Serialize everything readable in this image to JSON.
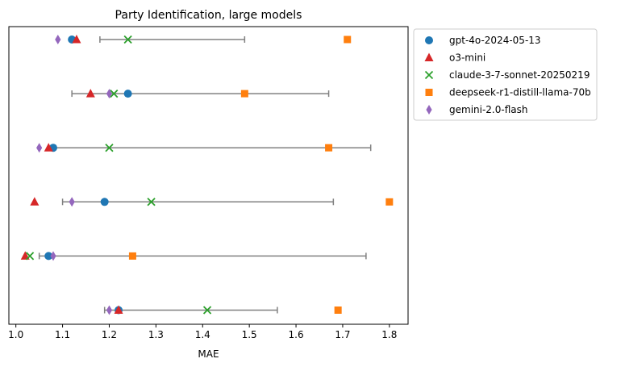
{
  "chart_data": {
    "type": "scatter",
    "title": "Party Identification, large models",
    "xlabel": "MAE",
    "ylabel": "",
    "xlim": [
      0.985,
      1.84
    ],
    "xticks": [
      "1.0",
      "1.1",
      "1.2",
      "1.3",
      "1.4",
      "1.5",
      "1.6",
      "1.7",
      "1.8"
    ],
    "xtick_values": [
      1.0,
      1.1,
      1.2,
      1.3,
      1.4,
      1.5,
      1.6,
      1.7,
      1.8
    ],
    "rows": 6,
    "grid": false,
    "legend_position": "outside-top-right",
    "error_bar_color": "#808080",
    "ranges": [
      {
        "row": 1,
        "min": 1.18,
        "max": 1.49
      },
      {
        "row": 2,
        "min": 1.12,
        "max": 1.67
      },
      {
        "row": 3,
        "min": 1.08,
        "max": 1.76
      },
      {
        "row": 4,
        "min": 1.1,
        "max": 1.68
      },
      {
        "row": 5,
        "min": 1.05,
        "max": 1.75
      },
      {
        "row": 6,
        "min": 1.19,
        "max": 1.56
      }
    ],
    "series": [
      {
        "name": "gpt-4o-2024-05-13",
        "marker": "circle",
        "color": "#1f77b4",
        "values": [
          1.12,
          1.24,
          1.08,
          1.19,
          1.07,
          1.22
        ]
      },
      {
        "name": "o3-mini",
        "marker": "triangle",
        "color": "#d62728",
        "values": [
          1.13,
          1.16,
          1.07,
          1.04,
          1.02,
          1.22
        ]
      },
      {
        "name": "claude-3-7-sonnet-20250219",
        "marker": "x",
        "color": "#2ca02c",
        "values": [
          1.24,
          1.21,
          1.2,
          1.29,
          1.03,
          1.41
        ]
      },
      {
        "name": "deepseek-r1-distill-llama-70b",
        "marker": "square",
        "color": "#ff7f0e",
        "values": [
          1.71,
          1.49,
          1.67,
          1.8,
          1.25,
          1.69
        ]
      },
      {
        "name": "gemini-2.0-flash",
        "marker": "diamond",
        "color": "#9467bd",
        "values": [
          1.09,
          1.2,
          1.05,
          1.12,
          1.08,
          1.2
        ]
      }
    ]
  }
}
